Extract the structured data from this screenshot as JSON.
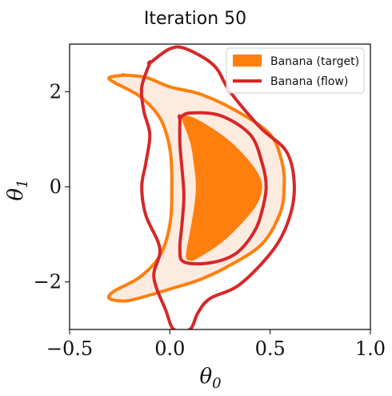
{
  "chart_data": {
    "type": "area",
    "title": "Iteration 50",
    "xlabel": "θ",
    "xlabel_sub": "0",
    "ylabel": "θ",
    "ylabel_sub": "1",
    "xlim": [
      -0.5,
      1.0
    ],
    "ylim": [
      -3.0,
      3.0
    ],
    "xticks": [
      -0.5,
      0.0,
      0.5,
      1.0
    ],
    "xtick_labels": [
      "−0.5",
      "0.0",
      "0.5",
      "1.0"
    ],
    "yticks": [
      -2,
      0,
      2
    ],
    "ytick_labels": [
      "−2",
      "0",
      "2"
    ],
    "grid": false,
    "legend_position": "top-right",
    "series": [
      {
        "name": "Banana (target)",
        "style": "filled-contours",
        "color": "#ff7f0e",
        "inner_fill": "#ff7f0e",
        "outer_fill": "#fdebe0",
        "inner_contour": [
          [
            0.05,
            1.5
          ],
          [
            0.12,
            1.45
          ],
          [
            0.24,
            1.15
          ],
          [
            0.34,
            0.8
          ],
          [
            0.43,
            0.35
          ],
          [
            0.46,
            0.0
          ],
          [
            0.43,
            -0.4
          ],
          [
            0.34,
            -0.85
          ],
          [
            0.25,
            -1.2
          ],
          [
            0.14,
            -1.5
          ],
          [
            0.1,
            -1.55
          ],
          [
            0.08,
            -1.45
          ],
          [
            0.1,
            -0.95
          ],
          [
            0.12,
            -0.45
          ],
          [
            0.13,
            0.0
          ],
          [
            0.12,
            0.45
          ],
          [
            0.1,
            0.95
          ],
          [
            0.05,
            1.5
          ]
        ],
        "outer_contour": [
          [
            -0.23,
            2.35
          ],
          [
            -0.12,
            2.3
          ],
          [
            0.0,
            2.1
          ],
          [
            0.15,
            1.95
          ],
          [
            0.33,
            1.6
          ],
          [
            0.5,
            1.1
          ],
          [
            0.56,
            0.5
          ],
          [
            0.57,
            0.0
          ],
          [
            0.55,
            -0.55
          ],
          [
            0.46,
            -1.2
          ],
          [
            0.3,
            -1.65
          ],
          [
            0.15,
            -1.95
          ],
          [
            0.0,
            -2.15
          ],
          [
            -0.12,
            -2.3
          ],
          [
            -0.22,
            -2.4
          ],
          [
            -0.3,
            -2.35
          ],
          [
            -0.28,
            -2.2
          ],
          [
            -0.15,
            -1.9
          ],
          [
            -0.05,
            -1.45
          ],
          [
            0.0,
            -0.8
          ],
          [
            0.01,
            0.0
          ],
          [
            0.0,
            0.8
          ],
          [
            -0.05,
            1.45
          ],
          [
            -0.15,
            1.9
          ],
          [
            -0.28,
            2.2
          ],
          [
            -0.3,
            2.3
          ],
          [
            -0.23,
            2.35
          ]
        ]
      },
      {
        "name": "Banana (flow)",
        "style": "contour-lines",
        "color": "#d62728",
        "inner_contour": [
          [
            0.05,
            1.45
          ],
          [
            0.1,
            1.55
          ],
          [
            0.25,
            1.5
          ],
          [
            0.4,
            1.1
          ],
          [
            0.46,
            0.5
          ],
          [
            0.48,
            0.0
          ],
          [
            0.46,
            -0.5
          ],
          [
            0.42,
            -0.95
          ],
          [
            0.33,
            -1.4
          ],
          [
            0.2,
            -1.6
          ],
          [
            0.07,
            -1.58
          ],
          [
            0.05,
            -1.3
          ],
          [
            0.06,
            -0.8
          ],
          [
            0.07,
            -0.2
          ],
          [
            0.06,
            0.4
          ],
          [
            0.05,
            0.9
          ],
          [
            0.05,
            1.45
          ]
        ],
        "outer_contour": [
          [
            -0.1,
            2.6
          ],
          [
            0.0,
            2.9
          ],
          [
            0.08,
            2.9
          ],
          [
            0.22,
            2.55
          ],
          [
            0.3,
            2.0
          ],
          [
            0.45,
            1.25
          ],
          [
            0.58,
            0.75
          ],
          [
            0.62,
            0.1
          ],
          [
            0.6,
            -0.6
          ],
          [
            0.52,
            -1.3
          ],
          [
            0.35,
            -2.05
          ],
          [
            0.2,
            -2.35
          ],
          [
            0.14,
            -2.65
          ],
          [
            0.1,
            -3.0
          ],
          [
            0.02,
            -3.0
          ],
          [
            -0.02,
            -2.6
          ],
          [
            -0.08,
            -1.9
          ],
          [
            -0.05,
            -1.3
          ],
          [
            -0.12,
            -0.6
          ],
          [
            -0.14,
            0.0
          ],
          [
            -0.12,
            0.5
          ],
          [
            -0.1,
            1.1
          ],
          [
            -0.13,
            1.6
          ],
          [
            -0.14,
            2.1
          ],
          [
            -0.1,
            2.6
          ]
        ]
      }
    ]
  }
}
